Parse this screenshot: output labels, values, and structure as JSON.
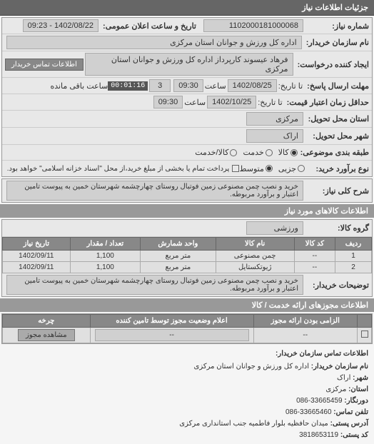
{
  "header": "جزئیات اطلاعات نیاز",
  "fields": {
    "request_no_label": "شماره نیاز:",
    "request_no": "1102000181000068",
    "pub_date_label": "تاریخ و ساعت اعلان عمومی:",
    "pub_date": "1402/08/22 - 09:23",
    "buyer_name_label": "نام سازمان خریدار:",
    "buyer_name": "اداره کل ورزش و جوانان استان مرکزی",
    "requester_label": "ایجاد کننده درخواست:",
    "requester": "فرهاد عیسوند کارپرداز اداره کل ورزش و جوانان استان مرکزی",
    "buyer_contact_btn": "اطلاعات تماس خریدار",
    "deadline_label": "مهلت ارسال پاسخ:",
    "deadline_to": "تا تاریخ:",
    "deadline_date": "1402/08/25",
    "time_label": "ساعت",
    "deadline_time": "09:30",
    "remain_days": "3",
    "remain_label": "ساعت باقی مانده",
    "countdown": "00:01:16",
    "validity_label": "حداقل زمان اعتبار قیمت:",
    "validity_to": "تا تاریخ:",
    "validity_date": "1402/10/25",
    "validity_time": "09:30",
    "delivery_province_label": "استان محل تحویل:",
    "delivery_province": "مرکزی",
    "delivery_city_label": "شهر محل تحویل:",
    "delivery_city": "اراک",
    "classification_label": "طبقه بندی موضوعی:",
    "class_opts": [
      "کالا",
      "خدمت",
      "کالا/خدمت"
    ],
    "purchase_type_label": "نوع برآورد خرید:",
    "purchase_opts": [
      "جزیی",
      "متوسط"
    ],
    "purchase_note": "پرداخت تمام یا بخشی از مبلغ خرید،از محل \"اسناد خزانه اسلامی\" خواهد بود.",
    "need_desc_label": "شرح کلی نیاز:",
    "need_desc": "خرید و نصب چمن مصنوعی زمین فوتبال روستای چهارچشمه شهرستان خمین به پیوست تامین اعتبار و برآورد مربوطه.",
    "buyer_note_label": "توضیحات خریدار:",
    "buyer_note": "خرید و نصب چمن مصنوعی زمین فوتبال روستای چهارچشمه شهرستان خمین به پیوست تامین اعتبار و برآورد مربوطه."
  },
  "goods_header": "اطلاعات کالاهای مورد نیاز",
  "goods_group_label": "گروه کالا:",
  "goods_group": "ورزشی",
  "goods_table": {
    "columns": [
      "ردیف",
      "کد کالا",
      "نام کالا",
      "واحد شمارش",
      "تعداد / مقدار",
      "تاریخ نیاز"
    ],
    "rows": [
      [
        "1",
        "--",
        "چمن مصنوعی",
        "متر مربع",
        "1,100",
        "1402/09/11"
      ],
      [
        "2",
        "--",
        "ژیوتکستایل",
        "متر مربع",
        "1,100",
        "1402/09/11"
      ]
    ]
  },
  "permits_header": "اطلاعات مجوزهای ارائه خدمت / کالا",
  "permits_table": {
    "columns": [
      "",
      "الزامی بودن ارائه مجوز",
      "اعلام وضعیت مجوز توسط تامین کننده",
      "چرخه"
    ],
    "rows": [
      [
        "",
        "--",
        "--",
        "مشاهده مجوز"
      ]
    ]
  },
  "contact": {
    "header": "اطلاعات تماس سازمان خریدار:",
    "org_label": "نام سازمان خریدار:",
    "org": "اداره کل ورزش و جوانان استان مرکزی",
    "city_label": "شهر:",
    "city": "اراک",
    "province_label": "استان:",
    "province": "مرکزی",
    "fax_label": "دورنگار:",
    "fax": "33665459-086",
    "phone_label": "تلفن تماس:",
    "phone": "33665460-086",
    "address_label": "آدرس پستی:",
    "address": "میدان حافظیه بلوار فاطمیه جنب استانداری مرکزی",
    "postal_label": "کد پستی:",
    "postal": "3818653119"
  }
}
